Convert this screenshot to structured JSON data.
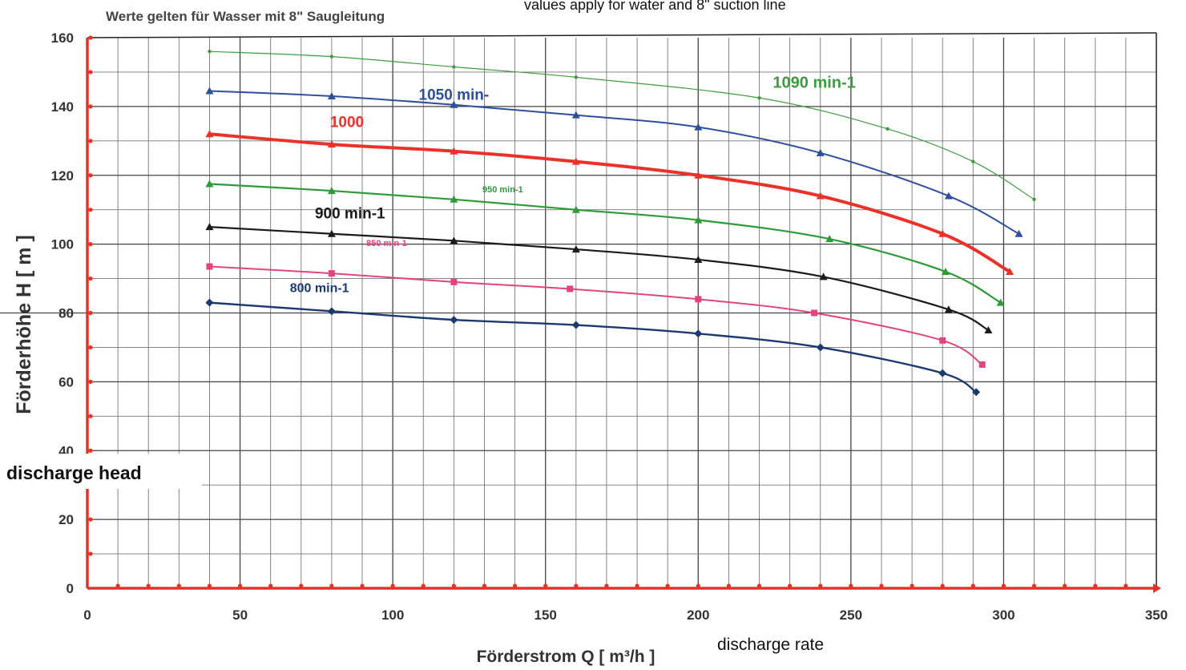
{
  "chart_data": {
    "type": "line",
    "title": "Werte gelten für Wasser mit 8\" Saugleitung",
    "subtitle": "values apply for water and 8\" suction line",
    "xlabel": "Förderstrom Q [ m³/h ]",
    "xlabel_en": "discharge rate",
    "ylabel": "Förderhöhe H [ m ]",
    "ylabel_en": "discharge head",
    "xlim": [
      0,
      350
    ],
    "ylim": [
      0,
      160
    ],
    "grid": true,
    "x_ticks": [
      "0",
      "50",
      "100",
      "150",
      "200",
      "250",
      "300",
      "350"
    ],
    "y_ticks": [
      "0",
      "20",
      "40",
      "60",
      "80",
      "100",
      "120",
      "140",
      "160"
    ],
    "series": [
      {
        "name": "1090 min-1",
        "color": "#3f9b3f",
        "marker": "dot",
        "points": [
          [
            40,
            156
          ],
          [
            80,
            154.5
          ],
          [
            120,
            151.5
          ],
          [
            160,
            148.5
          ],
          [
            220,
            142.5
          ],
          [
            262,
            133.5
          ],
          [
            290,
            124
          ],
          [
            310,
            113
          ]
        ]
      },
      {
        "name": "1050 min-",
        "color": "#2e4f9c",
        "marker": "triangle",
        "points": [
          [
            40,
            144.5
          ],
          [
            80,
            143
          ],
          [
            120,
            140.5
          ],
          [
            160,
            137.5
          ],
          [
            200,
            134
          ],
          [
            240,
            126.5
          ],
          [
            282,
            114
          ],
          [
            305,
            103
          ]
        ]
      },
      {
        "name": "1000",
        "color": "#e8322a",
        "marker": "triangle",
        "points": [
          [
            40,
            132
          ],
          [
            80,
            129
          ],
          [
            120,
            127
          ],
          [
            160,
            124
          ],
          [
            200,
            120
          ],
          [
            240,
            114
          ],
          [
            280,
            103
          ],
          [
            302,
            92
          ]
        ]
      },
      {
        "name": "950 min-1",
        "color": "#2e9a3a",
        "marker": "triangle",
        "points": [
          [
            40,
            117.5
          ],
          [
            80,
            115.5
          ],
          [
            120,
            113
          ],
          [
            160,
            110
          ],
          [
            200,
            107
          ],
          [
            243,
            101.5
          ],
          [
            281,
            92
          ],
          [
            299,
            83
          ]
        ]
      },
      {
        "name": "900 min-1",
        "color": "#1b1b1b",
        "marker": "triangle",
        "points": [
          [
            40,
            105
          ],
          [
            80,
            103
          ],
          [
            120,
            101
          ],
          [
            160,
            98.5
          ],
          [
            200,
            95.5
          ],
          [
            241,
            90.5
          ],
          [
            282,
            81
          ],
          [
            295,
            75
          ]
        ]
      },
      {
        "name": "850 min-1",
        "color": "#e0457f",
        "marker": "square",
        "points": [
          [
            40,
            93.5
          ],
          [
            80,
            91.5
          ],
          [
            120,
            89
          ],
          [
            158,
            87
          ],
          [
            200,
            84
          ],
          [
            238,
            80
          ],
          [
            280,
            72
          ],
          [
            293,
            65
          ]
        ]
      },
      {
        "name": "800 min-1",
        "color": "#1c3a70",
        "marker": "diamond",
        "points": [
          [
            40,
            83
          ],
          [
            80,
            80.5
          ],
          [
            120,
            78
          ],
          [
            160,
            76.5
          ],
          [
            200,
            74
          ],
          [
            240,
            70
          ],
          [
            280,
            62.5
          ],
          [
            291,
            57
          ]
        ]
      }
    ],
    "annotations": [
      {
        "text": "1090 min-1",
        "color": "#3f9b3f"
      },
      {
        "text": "1050 min-",
        "color": "#2e4f9c"
      },
      {
        "text": "1000",
        "color": "#e8322a"
      },
      {
        "text": "950 min-1",
        "color": "#2e9a3a"
      },
      {
        "text": "900 min-1",
        "color": "#1b1b1b"
      },
      {
        "text": "850 min-1",
        "color": "#e0457f"
      },
      {
        "text": "800 min-1",
        "color": "#1c3a70"
      }
    ]
  }
}
